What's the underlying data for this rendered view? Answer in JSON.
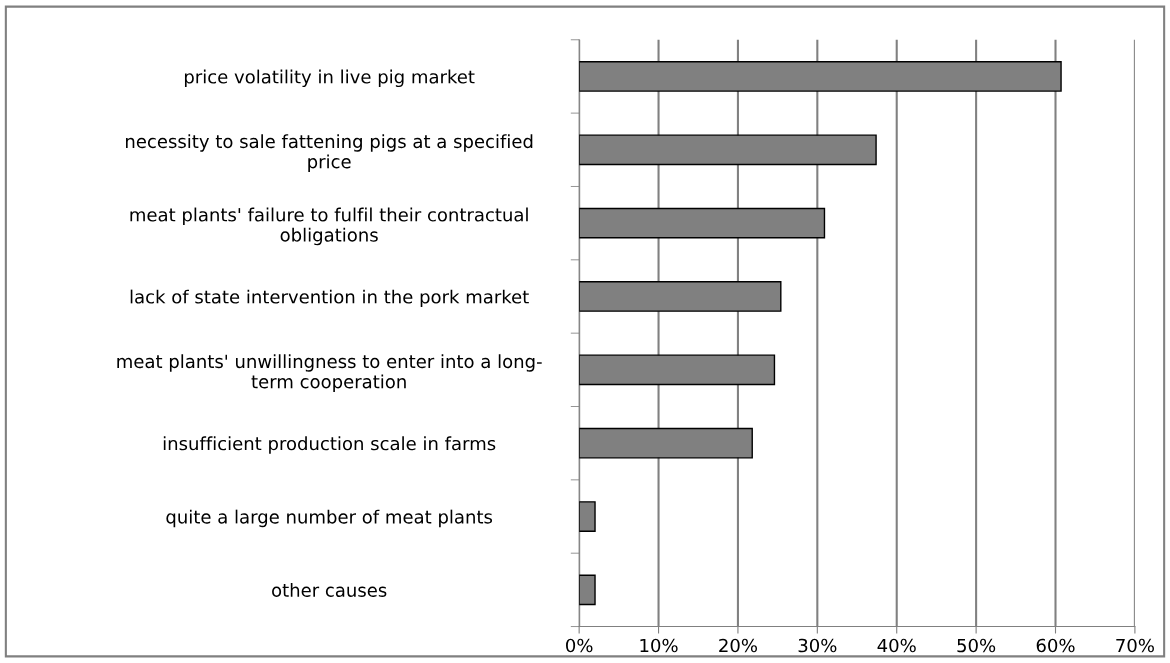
{
  "chart_data": {
    "type": "bar",
    "orientation": "horizontal",
    "categories": [
      "price volatility in live pig market",
      "necessity to sale fattening pigs at a specified\nprice",
      "meat plants' failure to fulfil their contractual\nobligations",
      "lack of state intervention in the pork market",
      "meat plants' unwillingness to enter into a long-\nterm cooperation",
      "insufficient production scale in farms",
      "quite a large number of meat plants",
      "other causes"
    ],
    "values": [
      60.7,
      37.4,
      30.9,
      25.4,
      24.6,
      21.8,
      2.0,
      2.0
    ],
    "color": "#808080",
    "xlim": [
      0,
      70
    ],
    "xticks": [
      {
        "value": 0,
        "label": "0%"
      },
      {
        "value": 10,
        "label": "10%"
      },
      {
        "value": 20,
        "label": "20%"
      },
      {
        "value": 30,
        "label": "30%"
      },
      {
        "value": 40,
        "label": "40%"
      },
      {
        "value": 50,
        "label": "50%"
      },
      {
        "value": 60,
        "label": "60%"
      },
      {
        "value": 70,
        "label": "70%"
      }
    ],
    "grid": "x",
    "legend": false
  }
}
